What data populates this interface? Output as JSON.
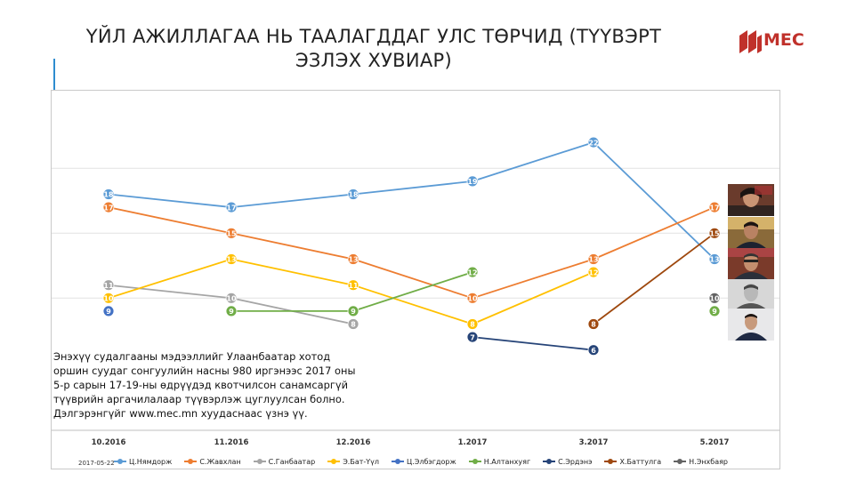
{
  "header": {
    "title_line1": "ҮЙЛ АЖИЛЛАГАА НЬ ТААЛАГДДАГ УЛС ТӨРЧИД (ТҮҮВЭРТ",
    "title_line2": "ЭЗЛЭХ ХУВИАР)",
    "logo_text": "MEC",
    "logo_color": "#c0312b"
  },
  "note": {
    "lines": [
      "Энэхүү судалгааны мэдээллийг Улаанбаатар хотод",
      "оршин суудаг сонгуулийн насны 980 иргэнээс 2017 оны",
      "5-р сарын 17-19-ны өдрүүдэд квотчилсон санамсаргүй",
      "түүврийн аргачилалаар түүвэрлэж цуглуулсан болно.",
      "Дэлгэрэнгүйг www.mec.mn хуудаснаас үзнэ үү."
    ]
  },
  "date_stamp": "2017-05-22",
  "chart_data": {
    "type": "line",
    "title": "ҮЙЛ АЖИЛЛАГАА НЬ ТААЛАГДДАГ УЛС ТӨРЧИД (ТҮҮВЭРТ ЭЗЛЭХ ХУВИАР)",
    "categories": [
      "10.2016",
      "11.2016",
      "12.2016",
      "1.2017",
      "3.2017",
      "5.2017"
    ],
    "grid": true,
    "legend_position": "bottom",
    "series": [
      {
        "name": "Ц.Нямдорж",
        "color": "#5b9bd5",
        "values": [
          18,
          17,
          18,
          19,
          22,
          13
        ]
      },
      {
        "name": "С.Жавхлан",
        "color": "#ed7d31",
        "values": [
          17,
          15,
          13,
          10,
          13,
          17
        ]
      },
      {
        "name": "С.Ганбаатар",
        "color": "#a5a5a5",
        "values": [
          11,
          10,
          8,
          null,
          null,
          null
        ]
      },
      {
        "name": "Э.Бат-Үүл",
        "color": "#ffc000",
        "values": [
          10,
          13,
          11,
          8,
          12,
          null
        ]
      },
      {
        "name": "Ц.Элбэгдорж",
        "color": "#4472c4",
        "values": [
          9,
          null,
          null,
          null,
          null,
          null
        ]
      },
      {
        "name": "Н.Алтанхуяг",
        "color": "#70ad47",
        "values": [
          null,
          9,
          9,
          12,
          null,
          9
        ]
      },
      {
        "name": "С.Эрдэнэ",
        "color": "#264478",
        "values": [
          null,
          null,
          null,
          7,
          6,
          null
        ]
      },
      {
        "name": "Х.Баттулга",
        "color": "#9e480e",
        "values": [
          null,
          null,
          null,
          null,
          8,
          15
        ]
      },
      {
        "name": "Н.Энхбаяр",
        "color": "#636363",
        "values": [
          null,
          null,
          null,
          null,
          null,
          10
        ]
      }
    ]
  }
}
